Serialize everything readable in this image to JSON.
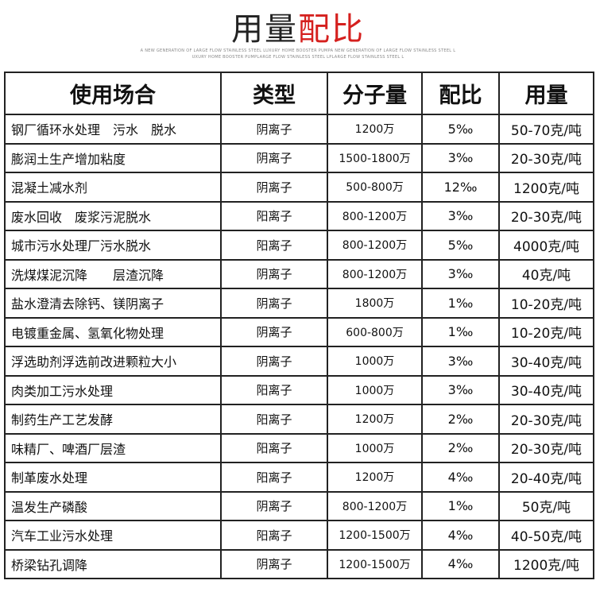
{
  "title": {
    "part1": "用量",
    "part2": "配比",
    "accent_color": "#d5201e"
  },
  "subtitle": [
    "A NEW GENERATION OF LARGE FLOW STAINLESS STEEL LUXURY HOME BOOSTER PUMPA NEW GENERATION OF LARGE FLOW STAINLESS STEEL L",
    "UXURY HOME BOOSTER PUMPLARGE FLOW STAINLESS STEEL LPLARGE FLOW STAINLESS STEEL L"
  ],
  "table": {
    "headers": [
      "使用场合",
      "类型",
      "分子量",
      "配比",
      "用量"
    ],
    "rows": [
      [
        "钢厂循环水处理　污水　脱水",
        "阴离子",
        "1200万",
        "5‰",
        "50-70克/吨"
      ],
      [
        "膨润土生产增加粘度",
        "阴离子",
        "1500-1800万",
        "3‰",
        "20-30克/吨"
      ],
      [
        "混凝土减水剂",
        "阴离子",
        "500-800万",
        "12‰",
        "1200克/吨"
      ],
      [
        "废水回收　废浆污泥脱水",
        "阳离子",
        "800-1200万",
        "3‰",
        "20-30克/吨"
      ],
      [
        "城市污水处理厂污水脱水",
        "阳离子",
        "800-1200万",
        "5‰",
        "4000克/吨"
      ],
      [
        "洗煤煤泥沉降　　层渣沉降",
        "阴离子",
        "800-1200万",
        "3‰",
        "40克/吨"
      ],
      [
        "盐水澄清去除钙、镁阴离子",
        "阴离子",
        "1800万",
        "1‰",
        "10-20克/吨"
      ],
      [
        "电镀重金属、氢氧化物处理",
        "阴离子",
        "600-800万",
        "1‰",
        "10-20克/吨"
      ],
      [
        "浮选助剂浮选前改进颗粒大小",
        "阴离子",
        "1000万",
        "3‰",
        "30-40克/吨"
      ],
      [
        "肉类加工污水处理",
        "阳离子",
        "1000万",
        "3‰",
        "30-40克/吨"
      ],
      [
        "制药生产工艺发酵",
        "阳离子",
        "1200万",
        "2‰",
        "20-30克/吨"
      ],
      [
        "味精厂、啤酒厂层渣",
        "阳离子",
        "1000万",
        "2‰",
        "20-30克/吨"
      ],
      [
        "制革废水处理",
        "阳离子",
        "1200万",
        "4‰",
        "20-40克/吨"
      ],
      [
        "温发生产磷酸",
        "阴离子",
        "800-1200万",
        "1‰",
        "50克/吨"
      ],
      [
        "汽车工业污水处理",
        "阳离子",
        "1200-1500万",
        "4‰",
        "40-50克/吨"
      ],
      [
        "桥梁钻孔调降",
        "阴离子",
        "1200-1500万",
        "4‰",
        "1200克/吨"
      ]
    ]
  }
}
